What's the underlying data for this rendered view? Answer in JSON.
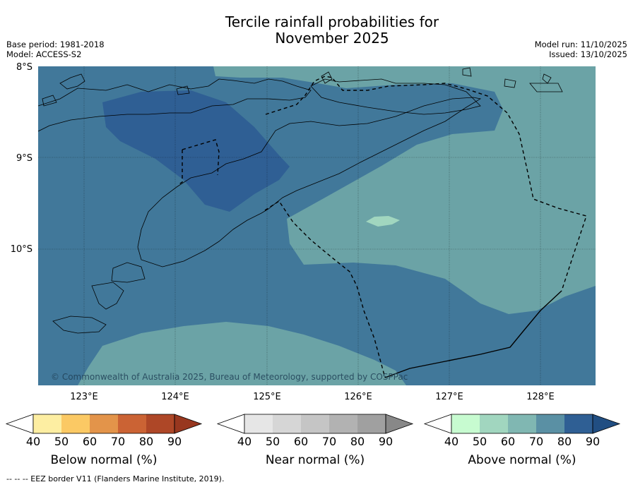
{
  "header": {
    "title_line1": "Tercile rainfall probabilities for",
    "title_line2": "November 2025",
    "base_period": "Base period: 1981-2018",
    "model": "Model: ACCESS-S2",
    "model_run": "Model run: 11/10/2025",
    "issued": "Issued: 13/10/2025"
  },
  "map": {
    "latitudes": [
      "8°S",
      "9°S",
      "10°S"
    ],
    "longitudes": [
      "123°E",
      "124°E",
      "125°E",
      "126°E",
      "127°E",
      "128°E"
    ],
    "copyright": "© Commonwealth of Australia 2025, Bureau of Meteorology, supported by COSPPac",
    "colors": {
      "above_70_80": "#41789a",
      "above_60_70": "#6ba3a6",
      "above_80_90": "#2f5f94",
      "above_50_60": "#a1d6bf",
      "coast": "#000000"
    }
  },
  "colorbars": [
    {
      "label": "Below normal (%)",
      "ticks": [
        "40",
        "50",
        "60",
        "70",
        "80",
        "90"
      ],
      "colors": [
        "#ffffff",
        "#fdeea2",
        "#fbc964",
        "#e3944a",
        "#cb6334",
        "#ae4727",
        "#98371f"
      ]
    },
    {
      "label": "Near normal (%)",
      "ticks": [
        "40",
        "50",
        "60",
        "70",
        "80",
        "90"
      ],
      "colors": [
        "#ffffff",
        "#e6e6e6",
        "#d6d6d6",
        "#c5c5c5",
        "#b2b2b2",
        "#a0a0a0",
        "#888888"
      ]
    },
    {
      "label": "Above normal (%)",
      "ticks": [
        "40",
        "50",
        "60",
        "70",
        "80",
        "90"
      ],
      "colors": [
        "#ffffff",
        "#c7fbd0",
        "#a1d6bf",
        "#80b7b2",
        "#5a90a4",
        "#2f5f94",
        "#214e82"
      ]
    }
  ],
  "footer": {
    "eez_note": "--  --  -- EEZ border V11 (Flanders Marine Institute, 2019)."
  }
}
